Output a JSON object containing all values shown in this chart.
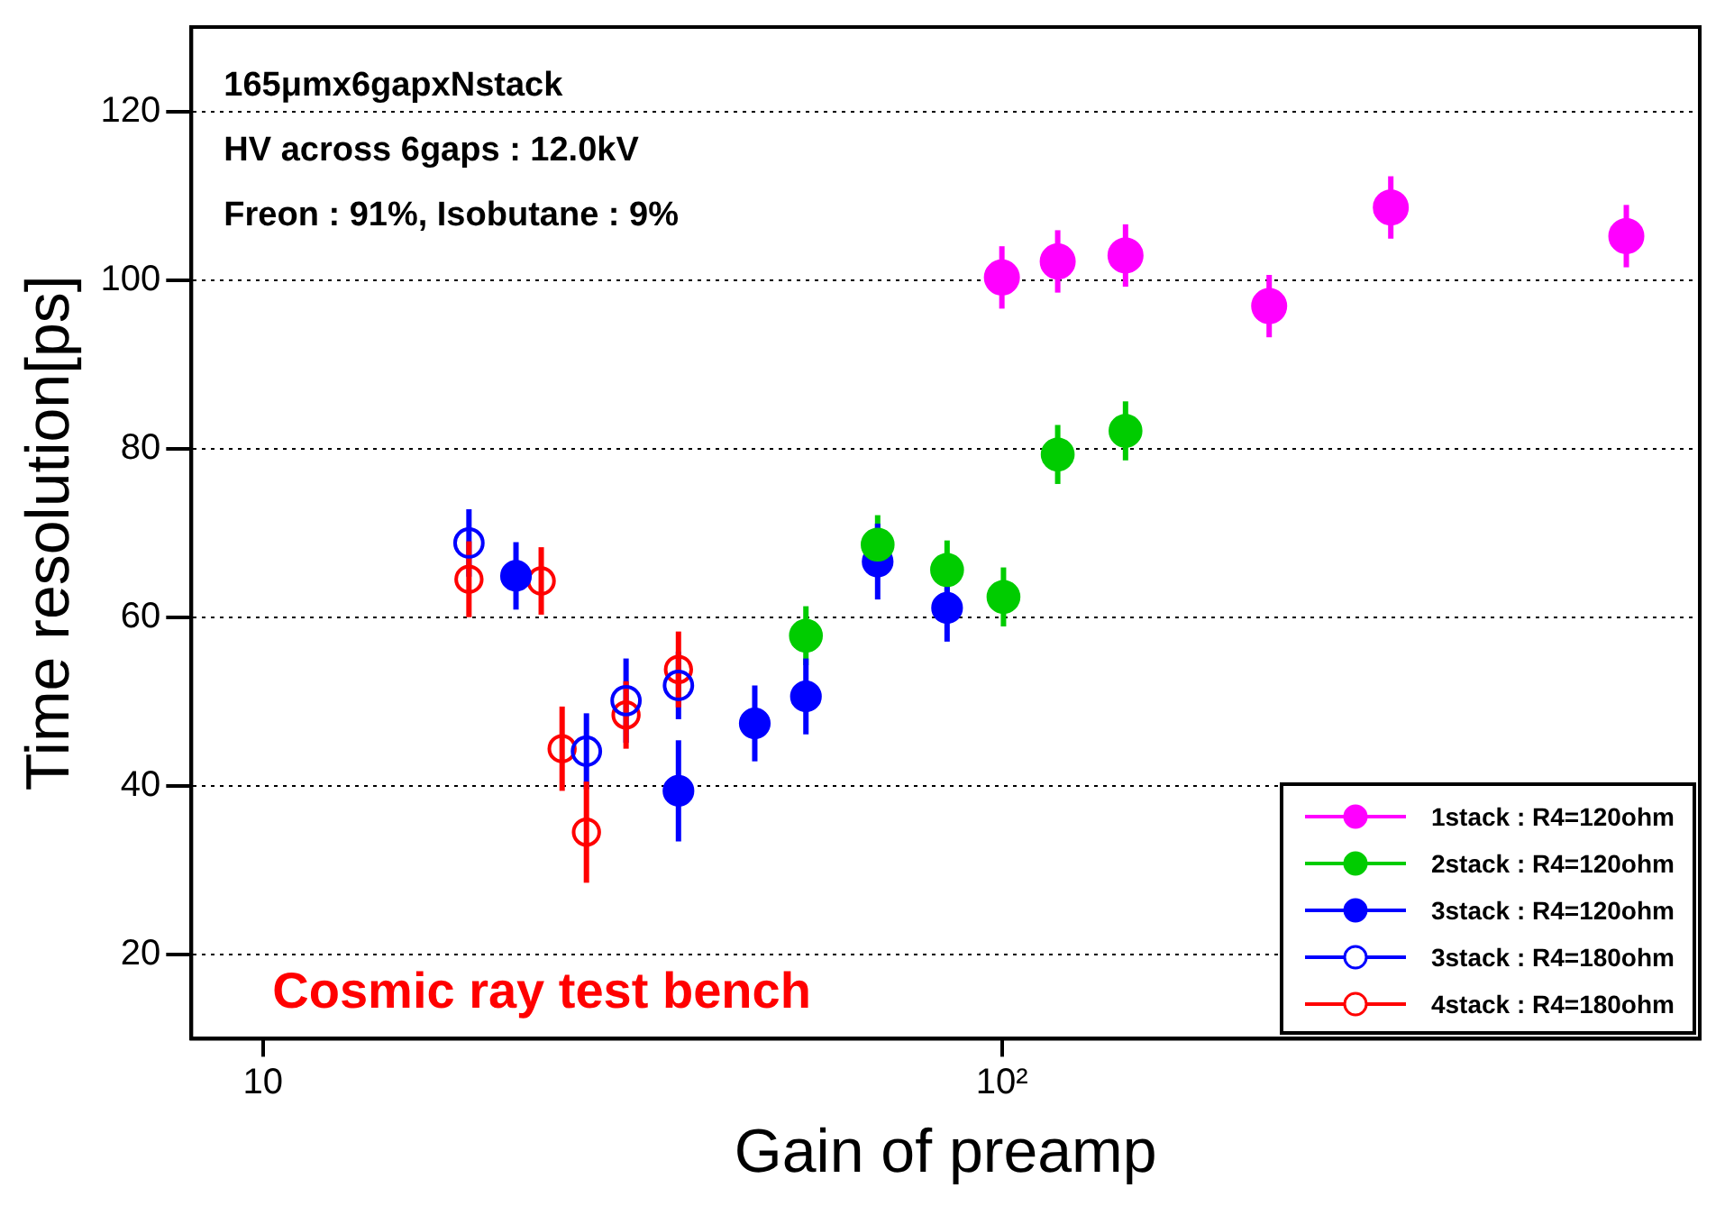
{
  "chart_data": {
    "type": "scatter",
    "xlabel": "Gain of preamp",
    "ylabel": "Time resolution[ps]",
    "annotations": [
      "165μmx6gapxNstack",
      "HV across 6gaps : 12.0kV",
      "Freon : 91%, Isobutane : 9%",
      "Cosmic ray test bench"
    ],
    "log": "x",
    "xlim": [
      8,
      880
    ],
    "xticks": [
      10,
      {
        "value": 100,
        "label": "10²"
      }
    ],
    "ylim": [
      10,
      130
    ],
    "yticks": [
      20,
      40,
      60,
      80,
      100,
      120
    ],
    "grid": "y",
    "legend": "bottom right",
    "marker": "circle",
    "series": [
      {
        "name": "1stack : R4=120ohm",
        "color": "#ff00ff",
        "x": [
          100,
          119,
          147,
          230,
          336,
          700
        ],
        "values": [
          100.3,
          102.2,
          102.9,
          96.9,
          108.6,
          105.2
        ],
        "errors": [
          3.7,
          3.7,
          3.7,
          3.7,
          3.7,
          3.7
        ]
      },
      {
        "name": "2stack : R4=120ohm",
        "color": "#00cc00",
        "x": [
          54.3,
          67.9,
          84.3,
          100.5,
          119,
          147
        ],
        "values": [
          57.8,
          68.6,
          65.6,
          62.4,
          79.3,
          82.1
        ],
        "errors": [
          3.5,
          3.5,
          3.5,
          3.5,
          3.5,
          3.5
        ]
      },
      {
        "name": "3stack : R4=120ohm",
        "color": "#0000ff",
        "x": [
          22.0,
          36.5,
          46.3,
          54.3,
          67.9,
          84.3
        ],
        "values": [
          64.9,
          39.4,
          47.4,
          50.6,
          66.6,
          61.1
        ],
        "errors": [
          4,
          6,
          4.5,
          4.5,
          4.5,
          4
        ]
      },
      {
        "name": "3stack : R4=180ohm",
        "color": "#0000ff",
        "marker": "open circle",
        "x": [
          19.0,
          27.4,
          31.0,
          36.5
        ],
        "values": [
          68.8,
          44.1,
          50.1,
          51.9
        ],
        "errors": [
          4,
          4.5,
          5,
          4
        ]
      },
      {
        "name": "4stack : R4=180ohm",
        "color": "#ff0000",
        "marker": "open circle",
        "x": [
          19.0,
          23.8,
          25.4,
          27.4,
          31.0,
          36.5
        ],
        "values": [
          64.5,
          64.3,
          44.4,
          34.5,
          48.4,
          53.8
        ],
        "errors": [
          4.5,
          4,
          5,
          6,
          4,
          4.5
        ]
      }
    ]
  }
}
